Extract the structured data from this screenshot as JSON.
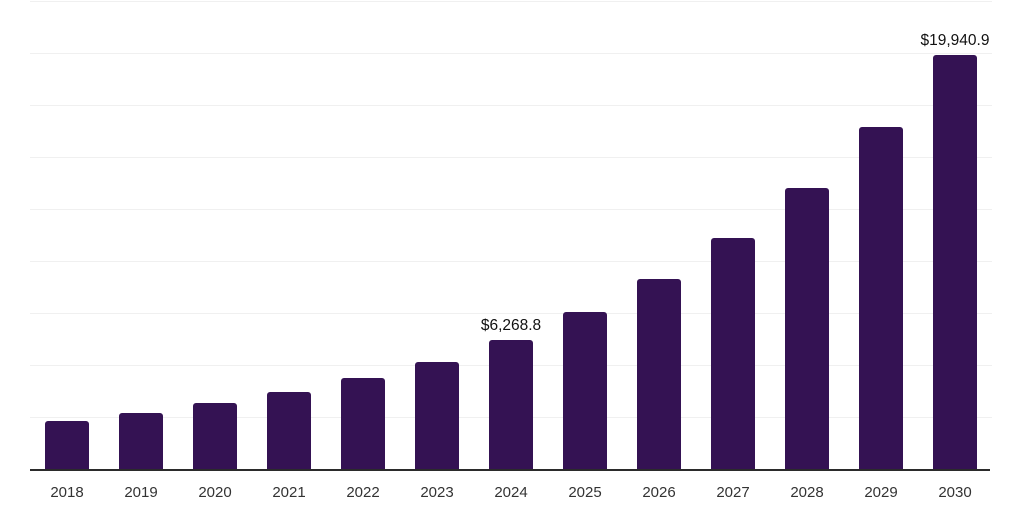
{
  "chart": {
    "background_color": "#ffffff",
    "bar_color": "#341253",
    "axis_line_color": "#2b2b2b",
    "gridline_color": "#f0f0f0",
    "tick_label_color": "#333333",
    "data_label_color": "#111111"
  },
  "chart_data": {
    "type": "bar",
    "title": "",
    "xlabel": "",
    "ylabel": "",
    "categories": [
      "2018",
      "2019",
      "2020",
      "2021",
      "2022",
      "2023",
      "2024",
      "2025",
      "2026",
      "2027",
      "2028",
      "2029",
      "2030"
    ],
    "values": [
      2370,
      2720,
      3200,
      3730,
      4410,
      5210,
      6268.8,
      7610,
      9190,
      11160,
      13560,
      16500,
      19940.9
    ],
    "point_labels": [
      "",
      "",
      "",
      "",
      "",
      "",
      "$6,268.8",
      "",
      "",
      "",
      "",
      "",
      "$19,940.9"
    ],
    "ylim": [
      0,
      22500
    ],
    "grid_step": 2500,
    "grid": "horizontal",
    "legend_position": "none"
  }
}
